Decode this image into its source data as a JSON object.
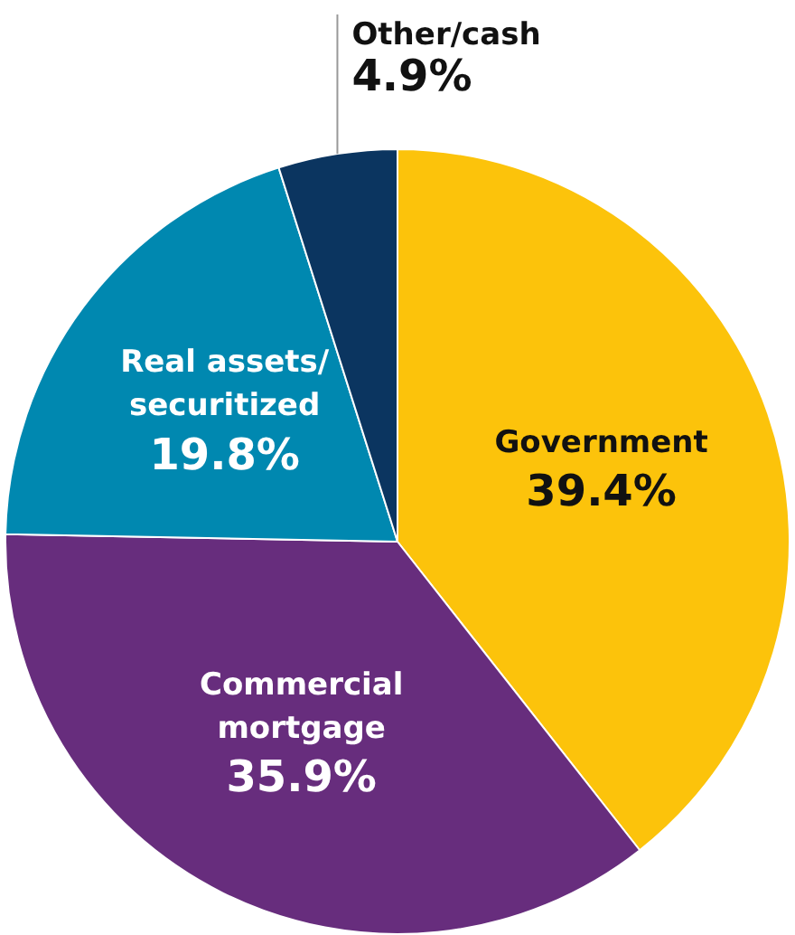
{
  "chart_data": {
    "type": "pie",
    "categories": [
      "Government",
      "Commercial\nmortgage",
      "Real assets/\nsecuritized",
      "Other/cash"
    ],
    "values": [
      39.4,
      35.9,
      19.8,
      4.9
    ],
    "colors": [
      "#fcc30b",
      "#672d7d",
      "#0088b0",
      "#0b3560"
    ],
    "value_labels": [
      "39.4%",
      "35.9%",
      "19.8%",
      "4.9%"
    ],
    "legend": false
  }
}
